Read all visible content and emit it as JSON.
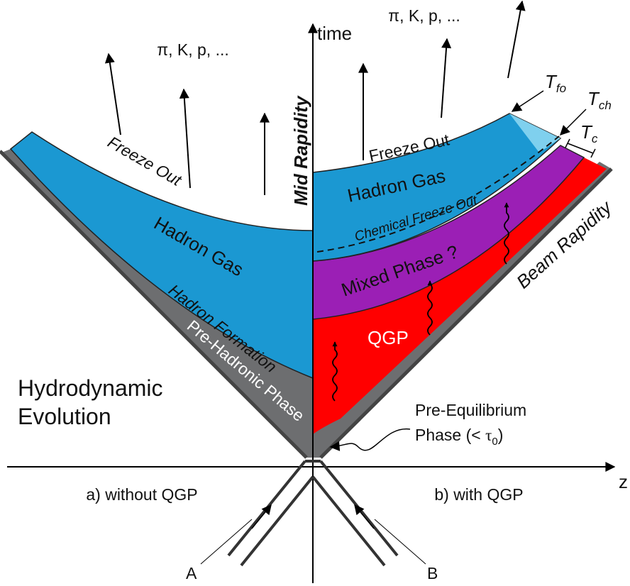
{
  "axes": {
    "vertical": "time",
    "horizontal": "z",
    "mid_rapidity": "Mid Rapidity",
    "beam_rapidity": "Beam Rapidity"
  },
  "left_panel": {
    "caption": "a) without QGP",
    "particles": "π, K, p, ...",
    "freeze_out": "Freeze Out",
    "hadron_gas": "Hadron Gas",
    "hadron_formation": "Hadron Formation",
    "pre_hadronic_phase": "Pre-Hadronic Phase",
    "title_lines": [
      "Hydrodynamic",
      "Evolution"
    ]
  },
  "right_panel": {
    "caption": "b) with QGP",
    "particles": "π, K, p, ...",
    "freeze_out": "Freeze Out",
    "hadron_gas": "Hadron Gas",
    "chemical_freeze_out": "Chemical Freeze Out",
    "mixed_phase": "Mixed Phase ?",
    "qgp": "QGP",
    "pre_equilibrium": {
      "line1": "Pre-Equilibrium",
      "line2_prefix": "Phase (< ",
      "symbol": "τ",
      "subscript": "0",
      "line2_suffix": ")"
    },
    "temperatures": [
      {
        "symbol": "T",
        "subscript": "fo"
      },
      {
        "symbol": "T",
        "subscript": "ch"
      },
      {
        "symbol": "T",
        "subscript": "c"
      }
    ]
  },
  "beams": [
    "A",
    "B"
  ]
}
